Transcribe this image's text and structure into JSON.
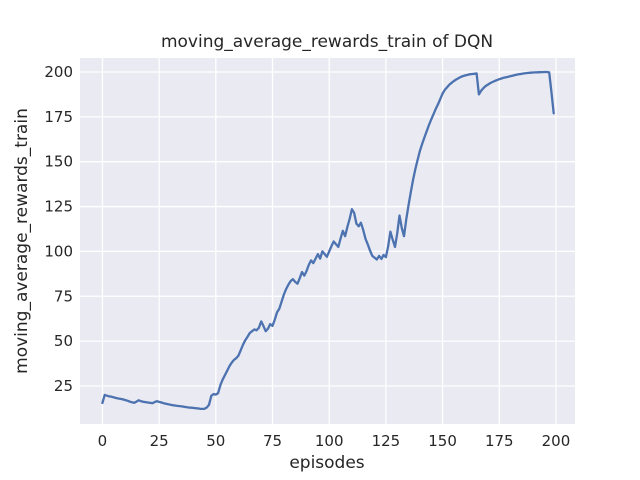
{
  "figure": {
    "title": "moving_average_rewards_train of DQN",
    "xlabel": "episodes",
    "ylabel": "moving_average_rewards_train",
    "background_color": "#ffffff",
    "plot_background_color": "#eaeaf2",
    "grid_color": "#ffffff",
    "line_color": "#4c72b0",
    "text_color": "#262626"
  },
  "chart_data": {
    "type": "line",
    "title": "moving_average_rewards_train of DQN",
    "xlabel": "episodes",
    "ylabel": "moving_average_rewards_train",
    "grid": true,
    "legend": false,
    "xlim": [
      -9.9,
      208.4
    ],
    "ylim": [
      3.8,
      207.8
    ],
    "xticks": [
      0,
      25,
      50,
      75,
      100,
      125,
      150,
      175,
      200
    ],
    "yticks": [
      25,
      50,
      75,
      100,
      125,
      150,
      175,
      200
    ],
    "series": [
      {
        "name": "moving_average_rewards_train",
        "color": "#4c72b0",
        "points": [
          [
            0,
            15.5
          ],
          [
            1,
            20
          ],
          [
            2,
            19.6
          ],
          [
            3,
            19.2
          ],
          [
            4,
            19
          ],
          [
            5,
            18.6
          ],
          [
            6,
            18.3
          ],
          [
            7,
            18
          ],
          [
            8,
            17.8
          ],
          [
            9,
            17.5
          ],
          [
            10,
            17.2
          ],
          [
            11,
            16.8
          ],
          [
            12,
            16.3
          ],
          [
            13,
            15.9
          ],
          [
            14,
            15.6
          ],
          [
            15,
            16.3
          ],
          [
            16,
            17
          ],
          [
            17,
            16.5
          ],
          [
            18,
            16.2
          ],
          [
            19,
            16
          ],
          [
            20,
            15.8
          ],
          [
            21,
            15.6
          ],
          [
            22,
            15.4
          ],
          [
            23,
            16
          ],
          [
            24,
            16.5
          ],
          [
            25,
            16.1
          ],
          [
            26,
            15.8
          ],
          [
            27,
            15.4
          ],
          [
            28,
            15.1
          ],
          [
            29,
            14.8
          ],
          [
            30,
            14.5
          ],
          [
            31,
            14.3
          ],
          [
            32,
            14.1
          ],
          [
            33,
            13.9
          ],
          [
            34,
            13.8
          ],
          [
            35,
            13.6
          ],
          [
            36,
            13.4
          ],
          [
            37,
            13.2
          ],
          [
            38,
            13
          ],
          [
            39,
            12.9
          ],
          [
            40,
            12.8
          ],
          [
            41,
            12.6
          ],
          [
            42,
            12.5
          ],
          [
            43,
            12.3
          ],
          [
            44,
            12.2
          ],
          [
            45,
            12.3
          ],
          [
            46,
            13
          ],
          [
            47,
            14.5
          ],
          [
            48,
            19.5
          ],
          [
            49,
            20.5
          ],
          [
            50,
            20.2
          ],
          [
            51,
            21
          ],
          [
            52,
            25.5
          ],
          [
            53,
            28.5
          ],
          [
            54,
            31
          ],
          [
            55,
            33.5
          ],
          [
            56,
            36
          ],
          [
            57,
            38
          ],
          [
            58,
            39.5
          ],
          [
            59,
            40.5
          ],
          [
            60,
            42
          ],
          [
            61,
            45
          ],
          [
            62,
            48
          ],
          [
            63,
            50.5
          ],
          [
            64,
            52.5
          ],
          [
            65,
            54.5
          ],
          [
            66,
            55.5
          ],
          [
            67,
            56.5
          ],
          [
            68,
            56
          ],
          [
            69,
            57.5
          ],
          [
            70,
            61
          ],
          [
            71,
            58.5
          ],
          [
            72,
            55.5
          ],
          [
            73,
            57
          ],
          [
            74,
            59.5
          ],
          [
            75,
            58.5
          ],
          [
            76,
            62
          ],
          [
            77,
            66
          ],
          [
            78,
            68
          ],
          [
            79,
            72
          ],
          [
            80,
            76
          ],
          [
            81,
            79
          ],
          [
            82,
            81.5
          ],
          [
            83,
            83.5
          ],
          [
            84,
            84.5
          ],
          [
            85,
            83
          ],
          [
            86,
            82
          ],
          [
            87,
            85
          ],
          [
            88,
            88.5
          ],
          [
            89,
            86.5
          ],
          [
            90,
            89
          ],
          [
            91,
            92.5
          ],
          [
            92,
            95
          ],
          [
            93,
            93.5
          ],
          [
            94,
            96
          ],
          [
            95,
            98.5
          ],
          [
            96,
            96
          ],
          [
            97,
            100
          ],
          [
            98,
            98.5
          ],
          [
            99,
            97
          ],
          [
            100,
            100
          ],
          [
            101,
            103
          ],
          [
            102,
            105.5
          ],
          [
            103,
            104
          ],
          [
            104,
            102.5
          ],
          [
            105,
            107
          ],
          [
            106,
            111.5
          ],
          [
            107,
            108.5
          ],
          [
            108,
            113.5
          ],
          [
            109,
            118
          ],
          [
            110,
            123.5
          ],
          [
            111,
            121.5
          ],
          [
            112,
            115.5
          ],
          [
            113,
            114
          ],
          [
            114,
            116
          ],
          [
            115,
            112
          ],
          [
            116,
            107
          ],
          [
            117,
            104
          ],
          [
            118,
            100.5
          ],
          [
            119,
            97.5
          ],
          [
            120,
            96.5
          ],
          [
            121,
            95.5
          ],
          [
            122,
            97.5
          ],
          [
            123,
            95.8
          ],
          [
            124,
            98
          ],
          [
            125,
            96.8
          ],
          [
            126,
            103
          ],
          [
            127,
            111
          ],
          [
            128,
            106.5
          ],
          [
            129,
            102.5
          ],
          [
            130,
            110
          ],
          [
            131,
            120
          ],
          [
            132,
            113
          ],
          [
            133,
            108.5
          ],
          [
            134,
            118
          ],
          [
            135,
            126
          ],
          [
            136,
            133
          ],
          [
            137,
            140
          ],
          [
            138,
            146
          ],
          [
            139,
            151
          ],
          [
            140,
            156
          ],
          [
            141,
            160
          ],
          [
            142,
            163.5
          ],
          [
            143,
            167
          ],
          [
            144,
            170.5
          ],
          [
            145,
            173.5
          ],
          [
            146,
            176.5
          ],
          [
            147,
            179.5
          ],
          [
            148,
            182
          ],
          [
            149,
            185
          ],
          [
            150,
            188
          ],
          [
            151,
            190
          ],
          [
            152,
            191.5
          ],
          [
            153,
            193
          ],
          [
            154,
            194
          ],
          [
            155,
            195
          ],
          [
            156,
            195.8
          ],
          [
            157,
            196.5
          ],
          [
            158,
            197.2
          ],
          [
            159,
            197.7
          ],
          [
            160,
            198.1
          ],
          [
            161,
            198.4
          ],
          [
            162,
            198.7
          ],
          [
            163,
            198.9
          ],
          [
            164,
            199
          ],
          [
            165,
            199.2
          ],
          [
            166,
            187.5
          ],
          [
            167,
            189.5
          ],
          [
            168,
            191
          ],
          [
            169,
            192.2
          ],
          [
            170,
            193
          ],
          [
            171,
            193.8
          ],
          [
            172,
            194.4
          ],
          [
            173,
            195
          ],
          [
            174,
            195.5
          ],
          [
            175,
            196
          ],
          [
            176,
            196.4
          ],
          [
            177,
            196.8
          ],
          [
            178,
            197.1
          ],
          [
            179,
            197.4
          ],
          [
            180,
            197.7
          ],
          [
            181,
            198
          ],
          [
            182,
            198.3
          ],
          [
            183,
            198.6
          ],
          [
            184,
            198.8
          ],
          [
            185,
            199
          ],
          [
            186,
            199.2
          ],
          [
            187,
            199.4
          ],
          [
            188,
            199.5
          ],
          [
            189,
            199.6
          ],
          [
            190,
            199.7
          ],
          [
            191,
            199.8
          ],
          [
            192,
            199.85
          ],
          [
            193,
            199.9
          ],
          [
            194,
            199.95
          ],
          [
            195,
            200
          ],
          [
            196,
            200
          ],
          [
            197,
            199.8
          ],
          [
            198,
            189
          ],
          [
            199,
            177
          ]
        ]
      }
    ]
  }
}
